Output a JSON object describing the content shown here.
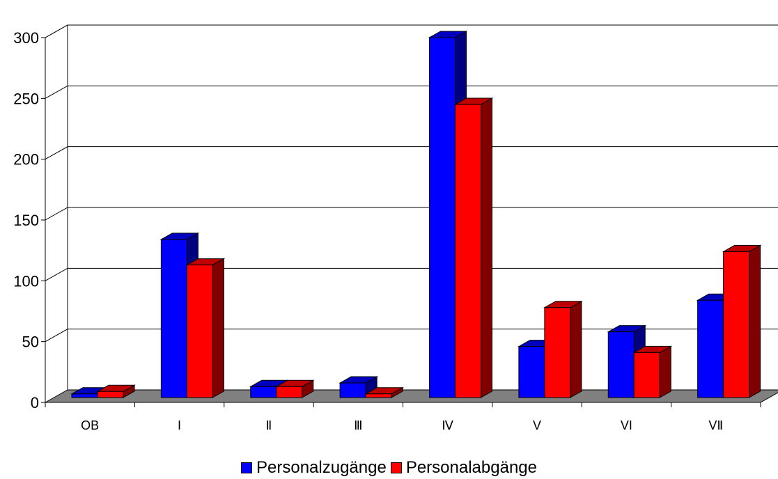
{
  "chart_data": {
    "type": "bar",
    "title": "",
    "xlabel": "",
    "ylabel": "",
    "categories": [
      "OB",
      "I",
      "Ⅱ",
      "Ⅲ",
      "Ⅳ",
      "V",
      "VI",
      "VⅡ"
    ],
    "series": [
      {
        "name": "Personalzugänge",
        "color": "#0000ff",
        "values": [
          3,
          130,
          9,
          12,
          296,
          42,
          54,
          80
        ]
      },
      {
        "name": "Personalabgänge",
        "color": "#ff0000",
        "values": [
          5,
          109,
          9,
          3,
          241,
          74,
          37,
          120
        ]
      }
    ],
    "ylim": [
      0,
      300
    ],
    "yticks": [
      0,
      50,
      100,
      150,
      200,
      250,
      300
    ],
    "grid": true,
    "legend_position": "bottom",
    "style": "3d-clustered-column"
  }
}
